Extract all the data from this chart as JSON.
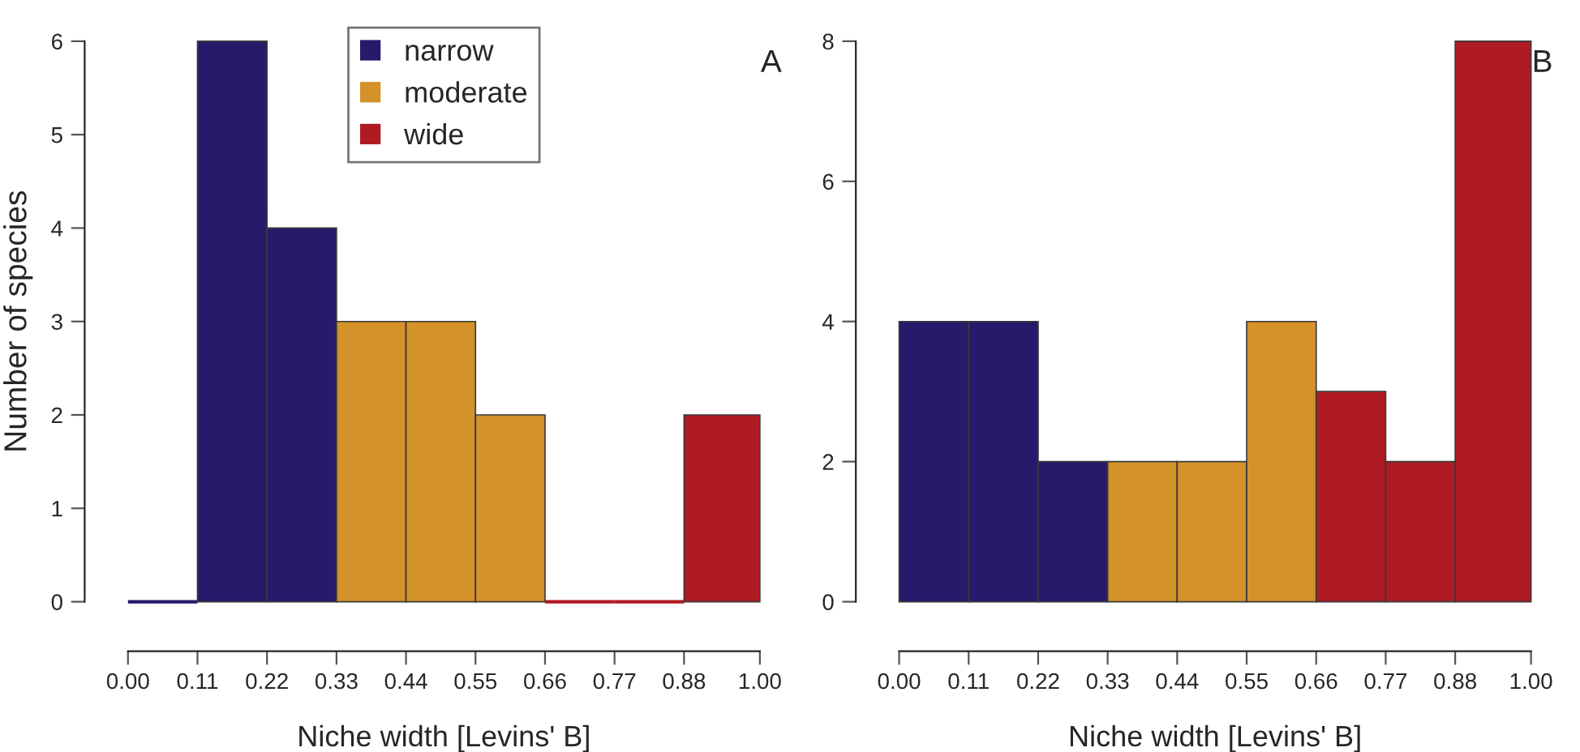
{
  "chart_data": [
    {
      "type": "histogram",
      "bins": [
        0.0,
        0.11,
        0.22,
        0.33,
        0.44,
        0.55,
        0.66,
        0.77,
        0.88,
        1.0
      ],
      "series": [
        {
          "name": "narrow",
          "color": "#261a6b",
          "values": [
            0,
            6,
            4,
            null,
            null,
            null,
            null,
            null,
            null
          ]
        },
        {
          "name": "moderate",
          "color": "#d4922a",
          "values": [
            null,
            null,
            null,
            3,
            3,
            2,
            null,
            null,
            null
          ]
        },
        {
          "name": "wide",
          "color": "#b01a22",
          "values": [
            null,
            null,
            null,
            null,
            null,
            null,
            0,
            0,
            2
          ]
        }
      ],
      "xlabel": "Niche width [Levins' B]",
      "ylabel": "Number of species",
      "xlim": [
        0.0,
        1.0
      ],
      "xticks": [
        {
          "value": 0.0,
          "label": "0.00"
        },
        {
          "value": 0.11,
          "label": "0.11"
        },
        {
          "value": 0.22,
          "label": "0.22"
        },
        {
          "value": 0.33,
          "label": "0.33"
        },
        {
          "value": 0.44,
          "label": "0.44"
        },
        {
          "value": 0.55,
          "label": "0.55"
        },
        {
          "value": 0.66,
          "label": "0.66"
        },
        {
          "value": 0.77,
          "label": "0.77"
        },
        {
          "value": 0.88,
          "label": "0.88"
        },
        {
          "value": 1.0,
          "label": "1.00"
        }
      ],
      "ylim": [
        0,
        6
      ],
      "yticks": [
        0,
        1,
        2,
        3,
        4,
        5,
        6
      ],
      "legend": "top",
      "grid": false,
      "annotations": [
        "A"
      ]
    },
    {
      "type": "histogram",
      "bins": [
        0.0,
        0.11,
        0.22,
        0.33,
        0.44,
        0.55,
        0.66,
        0.77,
        0.88,
        1.0
      ],
      "series": [
        {
          "color": "#261a6b",
          "values": [
            4,
            4,
            2,
            null,
            null,
            null,
            null,
            null,
            null
          ]
        },
        {
          "color": "#d4922a",
          "values": [
            null,
            null,
            null,
            2,
            2,
            4,
            null,
            null,
            null
          ]
        },
        {
          "color": "#b01a22",
          "values": [
            null,
            null,
            null,
            null,
            null,
            null,
            3,
            2,
            8
          ]
        }
      ],
      "xlabel": "Niche width [Levins' B]",
      "xlim": [
        0.0,
        1.0
      ],
      "xticks": [
        {
          "value": 0.0,
          "label": "0.00"
        },
        {
          "value": 0.11,
          "label": "0.11"
        },
        {
          "value": 0.22,
          "label": "0.22"
        },
        {
          "value": 0.33,
          "label": "0.33"
        },
        {
          "value": 0.44,
          "label": "0.44"
        },
        {
          "value": 0.55,
          "label": "0.55"
        },
        {
          "value": 0.66,
          "label": "0.66"
        },
        {
          "value": 0.77,
          "label": "0.77"
        },
        {
          "value": 0.88,
          "label": "0.88"
        },
        {
          "value": 1.0,
          "label": "1.00"
        }
      ],
      "ylim": [
        0,
        8
      ],
      "yticks": [
        0,
        2,
        4,
        6,
        8
      ],
      "legend": false,
      "grid": false,
      "annotations": [
        "B"
      ]
    }
  ]
}
